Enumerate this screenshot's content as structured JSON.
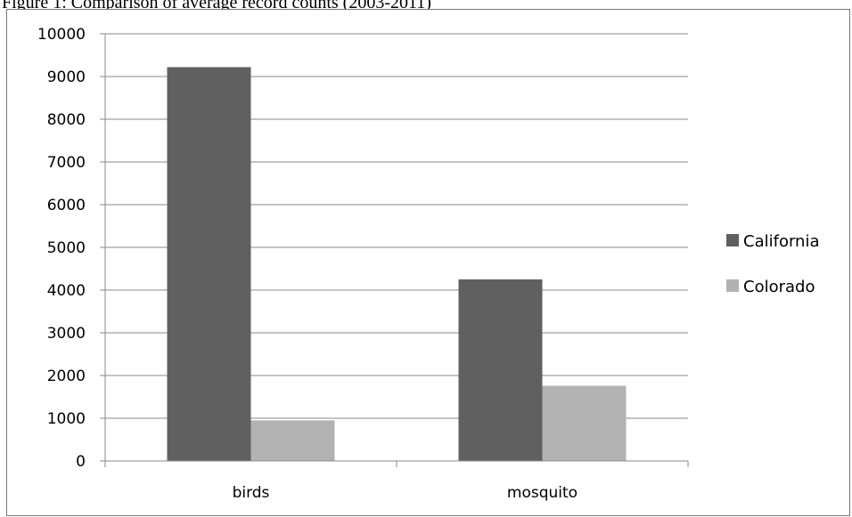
{
  "caption": "Figure 1: Comparison of average record counts (2003-2011)",
  "chart_data": {
    "type": "bar",
    "title": "",
    "xlabel": "",
    "ylabel": "",
    "categories": [
      "birds",
      "mosquito"
    ],
    "series": [
      {
        "name": "California",
        "values": [
          9220,
          4250
        ],
        "color": "#606060"
      },
      {
        "name": "Colorado",
        "values": [
          950,
          1760
        ],
        "color": "#b2b2b2"
      }
    ],
    "ylim": [
      0,
      10000
    ],
    "yticks": [
      0,
      1000,
      2000,
      3000,
      4000,
      5000,
      6000,
      7000,
      8000,
      9000,
      10000
    ],
    "grid": true,
    "legend_position": "right"
  }
}
